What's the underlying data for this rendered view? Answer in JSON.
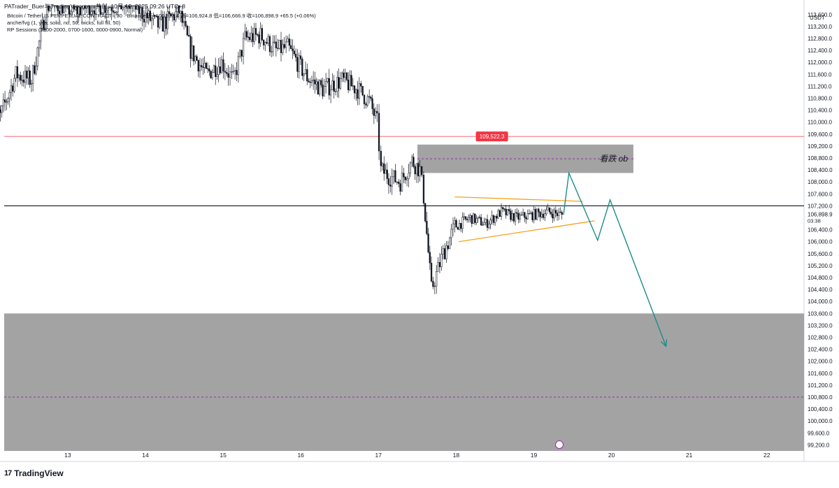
{
  "header": {
    "title": "PATrader_Buer与TradingView.com共创, 10月 19, 2025 09:26 UTC+8"
  },
  "legend": {
    "symbol_line": "Bitcoin / TetherUS PERPETUAL CONTRACT · 30 · Binance  开=106,833.4  高=106,924.8  低=106,666.9  收=106,898.9  +65.5 (+0.06%)",
    "indicator1": "anche/fvg (1, yes, solid, no, 50, wicks, full fill, 50)",
    "indicator2": "RP Sessions (1200-2000, 0700-1600, 0000-0900, Normal)"
  },
  "currency": "USDT",
  "brand": {
    "name": "TradingView",
    "logo": "17"
  },
  "price_axis": {
    "labels": [
      "113,600.0",
      "113,200.0",
      "112,800.0",
      "112,400.0",
      "112,000.0",
      "111,600.0",
      "111,200.0",
      "110,800.0",
      "110,400.0",
      "110,000.0",
      "109,600.0",
      "109,200.0",
      "108,800.0",
      "108,400.0",
      "108,000.0",
      "107,600.0",
      "107,200.0",
      "106,400.0",
      "106,000.0",
      "105,600.0",
      "105,200.0",
      "104,800.0",
      "104,400.0",
      "104,000.0",
      "103,600.0",
      "103,200.0",
      "102,800.0",
      "102,400.0",
      "102,000.0",
      "101,600.0",
      "101,200.0",
      "100,800.0",
      "100,400.0",
      "100,000.0",
      "99,600.0",
      "99,200.0"
    ],
    "current_price": "106,898.9",
    "countdown": "03:38",
    "alert_price": "109,522.3"
  },
  "annotations": {
    "ob_label": "看跌 ob"
  },
  "colors": {
    "up": "#131722",
    "down": "#131722",
    "alert": "#f23645",
    "orange_trendline": "#f7a21b",
    "projection": "#1e8c87",
    "zone": "#9e9e9e",
    "dashed": "#9c27b0"
  },
  "chart_data": {
    "type": "candlestick",
    "title": "Bitcoin / TetherUS PERPETUAL CONTRACT · 30 · Binance",
    "xlabel": "",
    "ylabel": "USDT",
    "x_ticks": [
      "13",
      "14",
      "15",
      "16",
      "17",
      "18",
      "19",
      "20",
      "21",
      "22"
    ],
    "ylim": [
      99000,
      113900
    ],
    "current_price": 106898.9,
    "alert_line": 109522.3,
    "horizontal_line": 107200,
    "bearish_ob_zone": [
      108300,
      109250
    ],
    "lower_zone": [
      99000,
      103600
    ],
    "lower_zone_mid": 100800,
    "triangle_upper": [
      [
        18.0,
        107500
      ],
      [
        19.65,
        107350
      ]
    ],
    "triangle_lower": [
      [
        18.05,
        106000
      ],
      [
        19.8,
        106700
      ]
    ],
    "projection_path": [
      [
        19.4,
        106900
      ],
      [
        19.47,
        108300
      ],
      [
        19.84,
        106050
      ],
      [
        20.0,
        107400
      ],
      [
        20.72,
        102500
      ]
    ],
    "price_path": [
      [
        12.0,
        110800
      ],
      [
        12.15,
        110200
      ],
      [
        12.35,
        111600
      ],
      [
        12.55,
        111400
      ],
      [
        12.75,
        113900
      ],
      [
        12.95,
        113900
      ],
      [
        13.1,
        113700
      ],
      [
        13.3,
        113900
      ],
      [
        13.5,
        113900
      ],
      [
        13.85,
        113900
      ],
      [
        14.0,
        113600
      ],
      [
        14.2,
        113200
      ],
      [
        14.45,
        113700
      ],
      [
        14.6,
        112400
      ],
      [
        14.8,
        111600
      ],
      [
        15.0,
        112000
      ],
      [
        15.15,
        111400
      ],
      [
        15.3,
        112800
      ],
      [
        15.5,
        112900
      ],
      [
        15.7,
        112400
      ],
      [
        15.85,
        112500
      ],
      [
        16.1,
        111500
      ],
      [
        16.3,
        111100
      ],
      [
        16.55,
        111400
      ],
      [
        16.75,
        111100
      ],
      [
        16.9,
        110700
      ],
      [
        17.0,
        110000
      ],
      [
        17.05,
        108400
      ],
      [
        17.15,
        108200
      ],
      [
        17.3,
        108000
      ],
      [
        17.45,
        108700
      ],
      [
        17.55,
        108400
      ],
      [
        17.6,
        107500
      ],
      [
        17.7,
        104400
      ],
      [
        17.85,
        105600
      ],
      [
        18.0,
        106500
      ],
      [
        18.2,
        106800
      ],
      [
        18.4,
        106600
      ],
      [
        18.6,
        107000
      ],
      [
        18.8,
        106800
      ],
      [
        19.0,
        106900
      ],
      [
        19.2,
        107000
      ],
      [
        19.38,
        106900
      ]
    ]
  }
}
